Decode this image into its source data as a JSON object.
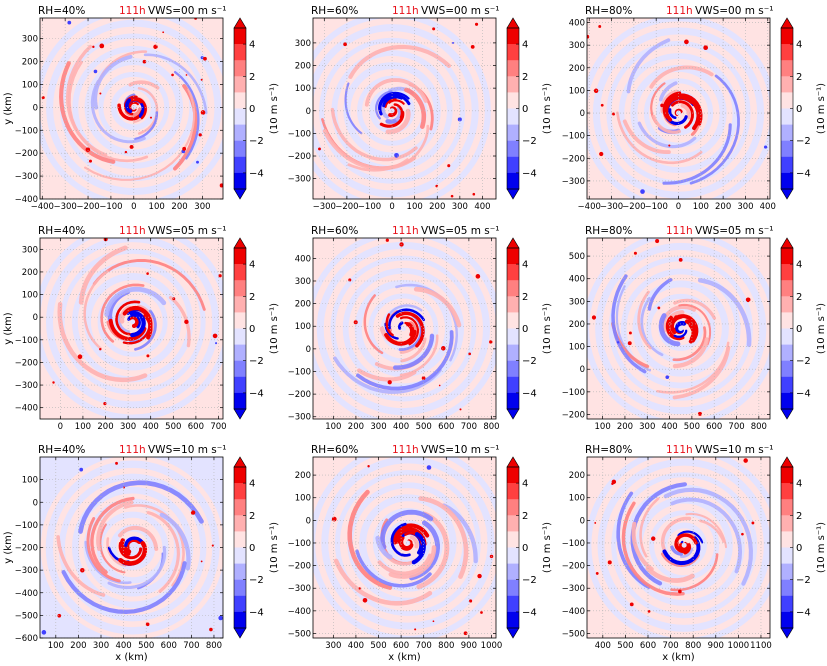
{
  "figure": {
    "time_label": "111h",
    "time_color": "#e8111a",
    "xlabel": "x (km)",
    "ylabel": "y (km)",
    "colorbar_label": "(10 m s⁻¹)",
    "colorbar_ticks": [
      "4",
      "2",
      "0",
      "−2",
      "−4"
    ],
    "palette": {
      "pos": [
        "#ffe3e3",
        "#ffb0b0",
        "#ff8080",
        "#ff4040",
        "#ee0000"
      ],
      "neg": [
        "#e3e3ff",
        "#b0b0ff",
        "#8080ff",
        "#4040ff",
        "#0000ee"
      ]
    }
  },
  "chart_data": [
    {
      "type": "heatmap",
      "rh": "RH=40%",
      "vws": "VWS=00 m s⁻¹",
      "xlim": [
        -410,
        390
      ],
      "ylim": [
        -400,
        390
      ],
      "xticks": [
        -400,
        -300,
        -200,
        -100,
        0,
        100,
        200,
        300
      ],
      "yticks": [
        -400,
        -300,
        -200,
        -100,
        0,
        100,
        200,
        300
      ],
      "center": [
        0,
        0
      ],
      "bg": "pos",
      "outer_dots": true
    },
    {
      "type": "heatmap",
      "rh": "RH=60%",
      "vws": "VWS=00 m s⁻¹",
      "xlim": [
        -350,
        460
      ],
      "ylim": [
        -390,
        410
      ],
      "xticks": [
        -300,
        -200,
        -100,
        0,
        100,
        200,
        300,
        400
      ],
      "yticks": [
        -300,
        -200,
        -100,
        0,
        100,
        200,
        300
      ],
      "center": [
        0,
        0
      ],
      "bg": "pos",
      "outer_dots": false
    },
    {
      "type": "heatmap",
      "rh": "RH=80%",
      "vws": "VWS=00 m s⁻¹",
      "xlim": [
        -410,
        410
      ],
      "ylim": [
        -380,
        420
      ],
      "xticks": [
        -400,
        -300,
        -200,
        -100,
        0,
        100,
        200,
        300,
        400
      ],
      "yticks": [
        -300,
        -200,
        -100,
        0,
        100,
        200,
        300,
        400
      ],
      "center": [
        0,
        0
      ],
      "bg": "pos",
      "outer_dots": false
    },
    {
      "type": "heatmap",
      "rh": "RH=40%",
      "vws": "VWS=05 m s⁻¹",
      "xlim": [
        -90,
        720
      ],
      "ylim": [
        -450,
        350
      ],
      "xticks": [
        0,
        100,
        200,
        300,
        400,
        500,
        600,
        700
      ],
      "yticks": [
        -400,
        -300,
        -200,
        -100,
        0,
        100,
        200,
        300
      ],
      "center": [
        320,
        -20
      ],
      "bg": "pos",
      "outer_dots": false
    },
    {
      "type": "heatmap",
      "rh": "RH=60%",
      "vws": "VWS=05 m s⁻¹",
      "xlim": [
        10,
        820
      ],
      "ylim": [
        -310,
        490
      ],
      "xticks": [
        100,
        200,
        300,
        400,
        500,
        600,
        700,
        800
      ],
      "yticks": [
        -300,
        -200,
        -100,
        0,
        100,
        200,
        300,
        400
      ],
      "center": [
        410,
        90
      ],
      "bg": "pos",
      "outer_dots": false
    },
    {
      "type": "heatmap",
      "rh": "RH=80%",
      "vws": "VWS=05 m s⁻¹",
      "xlim": [
        30,
        850
      ],
      "ylim": [
        -220,
        580
      ],
      "xticks": [
        100,
        200,
        300,
        400,
        500,
        600,
        700,
        800
      ],
      "yticks": [
        -200,
        -100,
        0,
        100,
        200,
        300,
        400,
        500
      ],
      "center": [
        450,
        180
      ],
      "bg": "pos",
      "outer_dots": false
    },
    {
      "type": "heatmap",
      "rh": "RH=40%",
      "vws": "VWS=10 m s⁻¹",
      "xlim": [
        30,
        840
      ],
      "ylim": [
        -600,
        200
      ],
      "xticks": [
        100,
        200,
        300,
        400,
        500,
        600,
        700,
        800
      ],
      "yticks": [
        -600,
        -500,
        -400,
        -300,
        -200,
        -100,
        0,
        100
      ],
      "center": [
        440,
        -200
      ],
      "bg": "neg",
      "outer_dots": false
    },
    {
      "type": "heatmap",
      "rh": "RH=60%",
      "vws": "VWS=10 m s⁻¹",
      "xlim": [
        210,
        1020
      ],
      "ylim": [
        -520,
        280
      ],
      "xticks": [
        300,
        400,
        500,
        600,
        700,
        800,
        900,
        1000
      ],
      "yticks": [
        -500,
        -400,
        -300,
        -200,
        -100,
        0,
        100,
        200
      ],
      "center": [
        630,
        -100
      ],
      "bg": "pos",
      "outer_dots": false
    },
    {
      "type": "heatmap",
      "rh": "RH=80%",
      "vws": "VWS=10 m s⁻¹",
      "xlim": [
        330,
        1140
      ],
      "ylim": [
        -520,
        280
      ],
      "xticks": [
        400,
        500,
        600,
        700,
        800,
        900,
        1000,
        1100
      ],
      "yticks": [
        -500,
        -400,
        -300,
        -200,
        -100,
        0,
        100,
        200
      ],
      "center": [
        760,
        -110
      ],
      "bg": "pos",
      "outer_dots": false
    }
  ]
}
